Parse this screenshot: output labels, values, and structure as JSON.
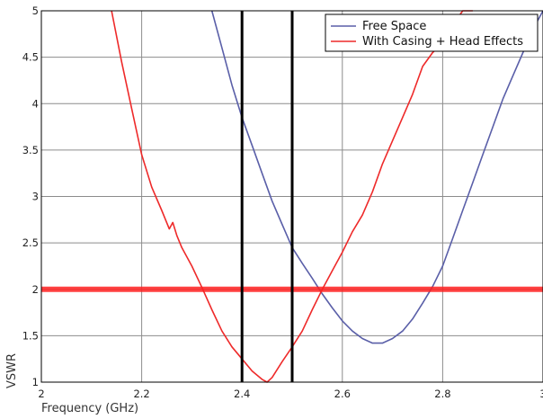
{
  "chart_data": {
    "type": "line",
    "xlabel": "Frequency (GHz)",
    "ylabel": "VSWR",
    "xlim": [
      2,
      3
    ],
    "ylim": [
      1,
      5
    ],
    "x_ticks": [
      2,
      2.2,
      2.4,
      2.6,
      2.8,
      3
    ],
    "x_tick_labels": [
      "2",
      "2.2",
      "2.4",
      "2.6",
      "2.8",
      "3"
    ],
    "y_ticks": [
      1,
      1.5,
      2,
      2.5,
      3,
      3.5,
      4,
      4.5,
      5
    ],
    "y_tick_labels": [
      "1",
      "1.5",
      "2",
      "2.5",
      "3",
      "3.5",
      "4",
      "4.5",
      "5"
    ],
    "grid": true,
    "legend_position": "top-right",
    "series": [
      {
        "name": "Free Space",
        "color": "#5a5fa8",
        "x": [
          2.34,
          2.36,
          2.38,
          2.4,
          2.42,
          2.44,
          2.46,
          2.48,
          2.5,
          2.52,
          2.54,
          2.56,
          2.58,
          2.6,
          2.62,
          2.64,
          2.66,
          2.68,
          2.7,
          2.72,
          2.74,
          2.76,
          2.78,
          2.8,
          2.82,
          2.84,
          2.86,
          2.88,
          2.9,
          2.92,
          2.94,
          2.96,
          2.98,
          3.0
        ],
        "y": [
          5.0,
          4.6,
          4.2,
          3.85,
          3.55,
          3.25,
          2.95,
          2.7,
          2.45,
          2.28,
          2.12,
          1.95,
          1.8,
          1.66,
          1.55,
          1.47,
          1.42,
          1.42,
          1.47,
          1.55,
          1.68,
          1.85,
          2.03,
          2.25,
          2.55,
          2.85,
          3.15,
          3.45,
          3.75,
          4.05,
          4.3,
          4.55,
          4.8,
          5.0
        ]
      },
      {
        "name": "With Casing + Head Effects",
        "color": "#ee2a2a",
        "x": [
          2.14,
          2.16,
          2.18,
          2.2,
          2.22,
          2.24,
          2.255,
          2.262,
          2.27,
          2.28,
          2.3,
          2.32,
          2.34,
          2.36,
          2.38,
          2.4,
          2.42,
          2.44,
          2.45,
          2.46,
          2.48,
          2.5,
          2.52,
          2.54,
          2.56,
          2.58,
          2.6,
          2.62,
          2.64,
          2.66,
          2.68,
          2.7,
          2.72,
          2.74,
          2.76,
          2.78,
          2.8,
          2.82,
          2.84,
          2.86
        ],
        "y": [
          5.0,
          4.45,
          3.95,
          3.45,
          3.1,
          2.85,
          2.65,
          2.72,
          2.58,
          2.45,
          2.25,
          2.02,
          1.78,
          1.55,
          1.38,
          1.25,
          1.12,
          1.03,
          1.0,
          1.05,
          1.22,
          1.38,
          1.55,
          1.78,
          2.0,
          2.2,
          2.4,
          2.62,
          2.8,
          3.05,
          3.35,
          3.6,
          3.85,
          4.1,
          4.4,
          4.55,
          4.65,
          4.85,
          5.0,
          5.0
        ]
      }
    ],
    "reference_lines": {
      "horizontal": {
        "y": 2,
        "color": "#ff2020"
      },
      "vertical": [
        {
          "x": 2.4,
          "color": "#000000"
        },
        {
          "x": 2.5,
          "color": "#000000"
        }
      ]
    }
  }
}
